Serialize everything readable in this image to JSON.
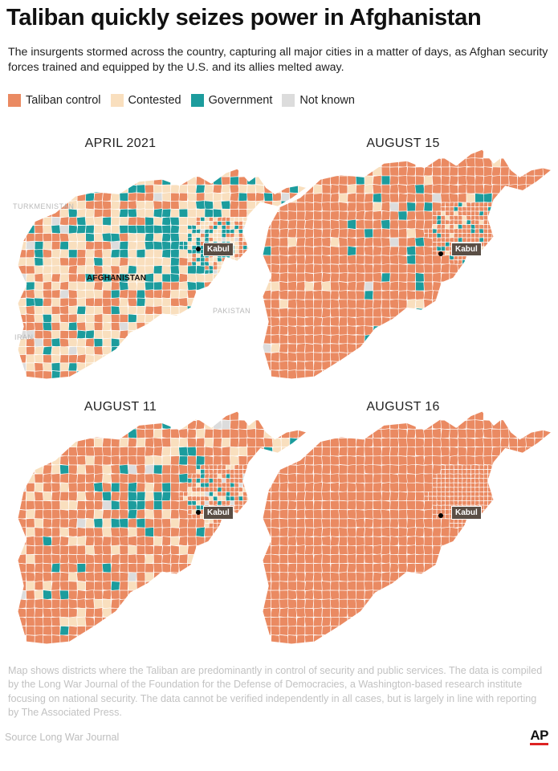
{
  "title": "Taliban quickly seizes power in Afghanistan",
  "subtitle": "The insurgents stormed across the country, capturing all major cities in a matter of days, as Afghan security forces trained and equipped by the U.S. and its allies melted away.",
  "legend": [
    {
      "label": "Taliban control",
      "color": "#ea8a62"
    },
    {
      "label": "Contested",
      "color": "#f9dfbe"
    },
    {
      "label": "Government",
      "color": "#1c9c9d"
    },
    {
      "label": "Not known",
      "color": "#dcdcdc"
    }
  ],
  "panels": [
    {
      "id": "p1",
      "title": "APRIL 2021",
      "taliban": 0.34,
      "contested": 0.38,
      "government": 0.25,
      "unknown": 0.03
    },
    {
      "id": "p2",
      "title": "AUGUST 15",
      "taliban": 0.84,
      "contested": 0.07,
      "government": 0.08,
      "unknown": 0.01
    },
    {
      "id": "p3",
      "title": "AUGUST 11",
      "taliban": 0.7,
      "contested": 0.17,
      "government": 0.11,
      "unknown": 0.02
    },
    {
      "id": "p4",
      "title": "AUGUST 16",
      "taliban": 1.0,
      "contested": 0,
      "government": 0,
      "unknown": 0
    }
  ],
  "map_labels": {
    "turkmenistan": "TURKMENISTAN",
    "afghanistan": "AFGHANISTAN",
    "pakistan": "PAKISTAN",
    "iran": "IRAN",
    "kabul": "Kabul"
  },
  "note": "Map shows districts where the Taliban are predominantly in control of security and public services. The data is compiled by the Long War Journal of the Foundation for the Defense of Democracies, a Washington-based research institute focusing on national security. The data cannot be verified independently in all cases, but is largely in line with reporting by The Associated Press.",
  "source": "Source  Long War Journal",
  "credit": "AP"
}
